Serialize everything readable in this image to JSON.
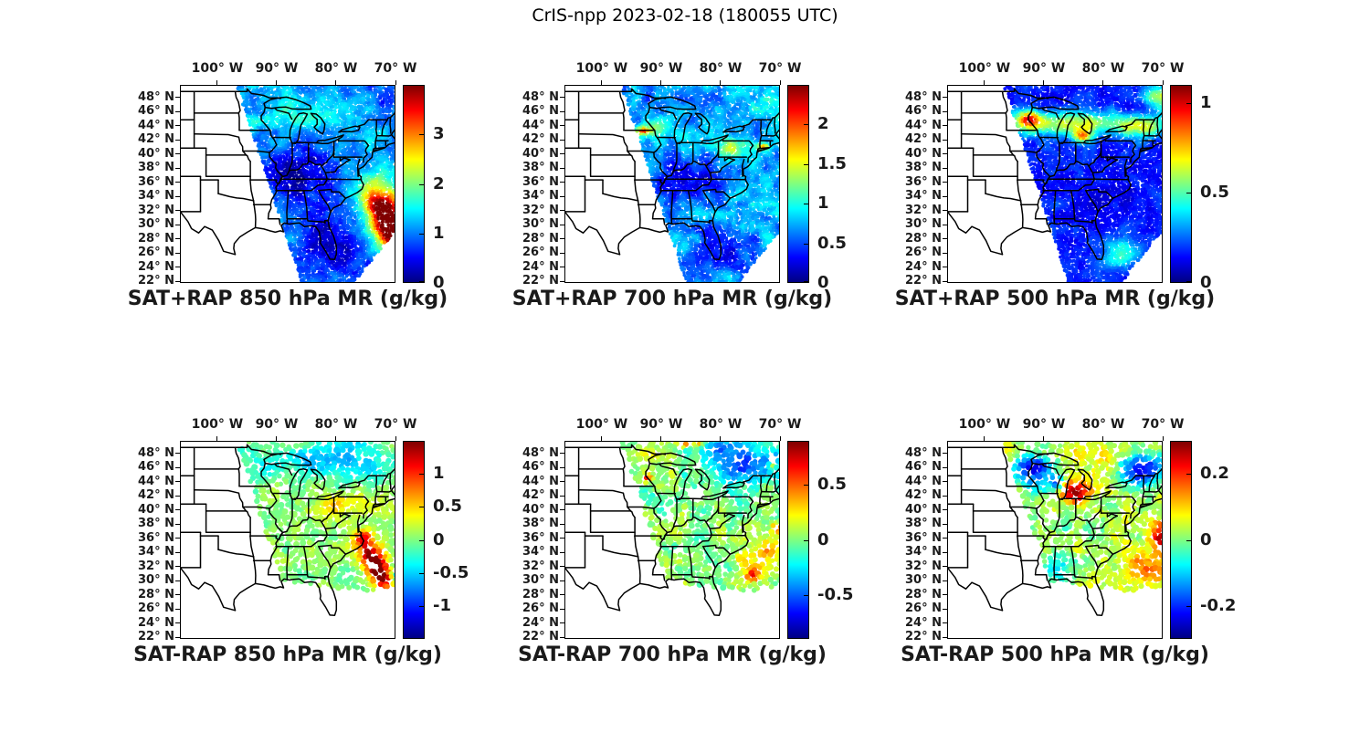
{
  "figure_title": "CrIS-npp 2023-02-18 (180055 UTC)",
  "axes": {
    "lon_tick_labels": [
      "100° W",
      "90° W",
      "80° W",
      "70° W"
    ],
    "lon_tick_values": [
      -100,
      -90,
      -80,
      -70
    ],
    "lat_tick_labels": [
      "48° N",
      "46° N",
      "44° N",
      "42° N",
      "40° N",
      "38° N",
      "36° N",
      "34° N",
      "32° N",
      "30° N",
      "28° N",
      "26° N",
      "24° N",
      "22° N"
    ],
    "lat_tick_values": [
      48,
      46,
      44,
      42,
      40,
      38,
      36,
      34,
      32,
      30,
      28,
      26,
      24,
      22
    ]
  },
  "colormap": {
    "name": "jet",
    "stops": [
      [
        0,
        "#000083"
      ],
      [
        0.125,
        "#0000ff"
      ],
      [
        0.375,
        "#00ffff"
      ],
      [
        0.625,
        "#ffff00"
      ],
      [
        0.875,
        "#ff0000"
      ],
      [
        1,
        "#7f0000"
      ]
    ]
  },
  "chart_data": {
    "type": "scatter",
    "description": "Six-panel CrIS-npp satellite sounding swath over the central/eastern US: top row SAT+RAP retrieved mixing ratio, bottom row SAT-RAP difference, at 850/700/500 hPa",
    "lon_range": [
      -106.3,
      -70
    ],
    "lat_range": [
      21.8,
      49.8
    ],
    "panels": [
      {
        "title": "SAT+RAP 850 hPa MR (g/kg)",
        "product": "SAT+RAP",
        "level": "850 hPa",
        "quantity": "MR",
        "units": "g/kg",
        "colorbar": {
          "range": [
            0,
            4
          ],
          "tick_values": [
            0,
            1,
            2,
            3
          ],
          "tick_labels": [
            "0",
            "1",
            "2",
            "3"
          ]
        },
        "swath": [
          [
            -96.9,
            49.81
          ],
          [
            -70,
            49.81
          ],
          [
            -70,
            29.5
          ],
          [
            -77.4,
            21.7
          ],
          [
            -85.9,
            21.7
          ]
        ],
        "field": {
          "base": 1.15,
          "noise": 0.5,
          "blobs": [
            [
              -85.5,
              45.8,
              7,
              2.6,
              0.45
            ],
            [
              -72.5,
              47.8,
              5,
              2.2,
              -0.35
            ],
            [
              -86,
              37.3,
              6.5,
              3.4,
              -1.0
            ],
            [
              -82,
              29.5,
              5,
              3.5,
              -0.85
            ],
            [
              -78.5,
              24.5,
              6,
              3,
              -0.6
            ],
            [
              -73.5,
              34.5,
              3.4,
              2.8,
              1.2
            ],
            [
              -72.4,
              32.3,
              2.7,
              2.3,
              2.0
            ],
            [
              -71.2,
              30.2,
              2.4,
              2.4,
              2.6
            ],
            [
              -70.2,
              28.4,
              2.2,
              2.2,
              2.2
            ]
          ],
          "holes": []
        },
        "dots": {
          "step": 2.6,
          "radius": 1.9,
          "skip": 0.02,
          "seed": 11
        }
      },
      {
        "title": "SAT+RAP 700 hPa MR (g/kg)",
        "product": "SAT+RAP",
        "level": "700 hPa",
        "quantity": "MR",
        "units": "g/kg",
        "colorbar": {
          "range": [
            0,
            2.5
          ],
          "tick_values": [
            0,
            0.5,
            1,
            1.5,
            2
          ],
          "tick_labels": [
            "0",
            "0.5",
            "1",
            "1.5",
            "2"
          ]
        },
        "swath": [
          [
            -96.9,
            49.81
          ],
          [
            -70,
            49.81
          ],
          [
            -70,
            29.5
          ],
          [
            -77.4,
            21.7
          ],
          [
            -85.9,
            21.7
          ]
        ],
        "field": {
          "base": 0.72,
          "noise": 0.34,
          "blobs": [
            [
              -92.7,
              43.4,
              2.4,
              1.0,
              0.85
            ],
            [
              -93.0,
              43.35,
              0.8,
              0.4,
              0.6
            ],
            [
              -78.2,
              41.0,
              3.4,
              1.3,
              0.6
            ],
            [
              -72.9,
              41.15,
              0.9,
              0.5,
              0.95
            ],
            [
              -85.8,
              36.6,
              6,
              3.2,
              -0.5
            ],
            [
              -80.5,
              26.5,
              5,
              3,
              -0.42
            ],
            [
              -72.5,
              46.8,
              4,
              2.4,
              0.22
            ],
            [
              -74.5,
              33,
              4.5,
              3,
              0.18
            ],
            [
              -88.5,
              47.5,
              4,
              2,
              -0.15
            ]
          ],
          "holes": []
        },
        "dots": {
          "step": 2.6,
          "radius": 1.9,
          "skip": 0.02,
          "seed": 22
        }
      },
      {
        "title": "SAT+RAP 500 hPa MR (g/kg)",
        "product": "SAT+RAP",
        "level": "500 hPa",
        "quantity": "MR",
        "units": "g/kg",
        "colorbar": {
          "range": [
            0,
            1.1
          ],
          "tick_values": [
            0,
            0.5,
            1
          ],
          "tick_labels": [
            "0",
            "0.5",
            "1"
          ]
        },
        "swath": [
          [
            -96.9,
            49.81
          ],
          [
            -70,
            49.81
          ],
          [
            -70,
            29.5
          ],
          [
            -77.4,
            21.7
          ],
          [
            -85.9,
            21.7
          ]
        ],
        "field": {
          "base": 0.17,
          "noise": 0.1,
          "blobs": [
            [
              -86,
              44.4,
              12,
              1.7,
              0.5
            ],
            [
              -92.7,
              45.1,
              1.8,
              1.1,
              0.45
            ],
            [
              -83.6,
              42.6,
              1.5,
              0.9,
              0.5
            ],
            [
              -73.3,
              43.8,
              3.6,
              1.5,
              0.35
            ],
            [
              -70.4,
              48.2,
              3,
              1.8,
              0.42
            ],
            [
              -77.2,
              26.2,
              3,
              2,
              0.35
            ],
            [
              -74.5,
              47,
              3,
              2,
              -0.08
            ],
            [
              -80,
              33,
              6,
              4,
              -0.06
            ]
          ],
          "holes": []
        },
        "dots": {
          "step": 2.6,
          "radius": 1.9,
          "skip": 0.02,
          "seed": 33
        }
      },
      {
        "title": "SAT-RAP 850 hPa MR (g/kg)",
        "product": "SAT-RAP",
        "level": "850 hPa",
        "quantity": "MR",
        "units": "g/kg",
        "colorbar": {
          "range": [
            -1.5,
            1.5
          ],
          "tick_values": [
            -1,
            -0.5,
            0,
            0.5,
            1
          ],
          "tick_labels": [
            "-1",
            "-0.5",
            "0",
            "0.5",
            "1"
          ]
        },
        "swath": [
          [
            -96.9,
            49.81
          ],
          [
            -70,
            49.81
          ],
          [
            -70,
            29.5
          ],
          [
            -75.5,
            28.6
          ],
          [
            -89.3,
            30.2
          ]
        ],
        "field": {
          "base": 0.05,
          "noise": 0.3,
          "blobs": [
            [
              -81,
              47.5,
              13,
              3.2,
              -0.65
            ],
            [
              -87.5,
              49.7,
              5,
              1.1,
              0.35
            ],
            [
              -71,
              49.5,
              2.5,
              1.2,
              0.3
            ],
            [
              -80.3,
              40.6,
              4,
              1.7,
              0.42
            ],
            [
              -75.6,
              35.8,
              1.8,
              1.5,
              1.1
            ],
            [
              -74.3,
              33.6,
              1.8,
              1.5,
              1.4
            ],
            [
              -73.1,
              31.8,
              1.8,
              1.5,
              1.5
            ],
            [
              -72.0,
              30.2,
              1.6,
              1.3,
              1.3
            ],
            [
              -70.1,
              31.3,
              1.1,
              1.1,
              -0.6
            ]
          ],
          "holes": [
            [
              -88.9,
              43.2,
              0.9
            ]
          ]
        },
        "dots": {
          "step": 4.8,
          "radius": 3.1,
          "skip": 0.08,
          "seed": 44
        }
      },
      {
        "title": "SAT-RAP 700 hPa MR (g/kg)",
        "product": "SAT-RAP",
        "level": "700 hPa",
        "quantity": "MR",
        "units": "g/kg",
        "colorbar": {
          "range": [
            -0.9,
            0.9
          ],
          "tick_values": [
            -0.5,
            0,
            0.5
          ],
          "tick_labels": [
            "-0.5",
            "0",
            "0.5"
          ]
        },
        "swath": [
          [
            -96.9,
            49.81
          ],
          [
            -70,
            49.81
          ],
          [
            -70,
            29.5
          ],
          [
            -75.5,
            28.6
          ],
          [
            -89.3,
            30.2
          ]
        ],
        "field": {
          "base": -0.02,
          "noise": 0.22,
          "blobs": [
            [
              -75.5,
              46.8,
              5.5,
              2.8,
              -0.5
            ],
            [
              -80.5,
              48.8,
              4,
              1.6,
              -0.28
            ],
            [
              -91.5,
              47,
              4,
              2.6,
              0.16
            ],
            [
              -73.5,
              33.5,
              5,
              3.5,
              0.33
            ],
            [
              -70.6,
              37.6,
              0.8,
              0.7,
              0.8
            ],
            [
              -74.8,
              30.8,
              1.2,
              0.9,
              0.5
            ],
            [
              -92.4,
              44.6,
              0.9,
              0.55,
              0.6
            ],
            [
              -86.5,
              49.5,
              1.1,
              0.6,
              0.55
            ],
            [
              -83.8,
              49.7,
              0.9,
              0.5,
              0.5
            ],
            [
              -71.5,
              46.3,
              0.8,
              0.5,
              0.5
            ]
          ],
          "holes": [
            [
              -84.3,
              42.3,
              1.5
            ],
            [
              -88.7,
              39.2,
              1.0
            ]
          ]
        },
        "dots": {
          "step": 4.8,
          "radius": 3.1,
          "skip": 0.08,
          "seed": 55
        }
      },
      {
        "title": "SAT-RAP 500 hPa MR (g/kg)",
        "product": "SAT-RAP",
        "level": "500 hPa",
        "quantity": "MR",
        "units": "g/kg",
        "colorbar": {
          "range": [
            -0.3,
            0.3
          ],
          "tick_values": [
            -0.2,
            0,
            0.2
          ],
          "tick_labels": [
            "-0.2",
            "0",
            "0.2"
          ]
        },
        "swath": [
          [
            -96.9,
            49.81
          ],
          [
            -70,
            49.81
          ],
          [
            -70,
            29.5
          ],
          [
            -75.5,
            28.6
          ],
          [
            -89.3,
            30.2
          ]
        ],
        "field": {
          "base": 0.035,
          "noise": 0.08,
          "blobs": [
            [
              -91.7,
              45.8,
              3,
              2.4,
              -0.28
            ],
            [
              -73.8,
              45.9,
              4,
              2.6,
              -0.26
            ],
            [
              -79.8,
              47.6,
              5,
              1.8,
              0.07
            ],
            [
              -84.6,
              42.6,
              2.4,
              1.6,
              0.27
            ],
            [
              -70.5,
              36.2,
              1.6,
              2,
              0.22
            ],
            [
              -73.5,
              31.6,
              4.5,
              2,
              0.12
            ],
            [
              -87.5,
              31.5,
              3,
              2,
              -0.1
            ],
            [
              -85.5,
              38,
              6,
              3,
              -0.05
            ],
            [
              -88,
              44,
              1.2,
              0.9,
              -0.2
            ]
          ],
          "holes": [
            [
              -88.7,
              39.4,
              1.1
            ]
          ]
        },
        "dots": {
          "step": 4.8,
          "radius": 3.1,
          "skip": 0.08,
          "seed": 66
        }
      }
    ]
  }
}
